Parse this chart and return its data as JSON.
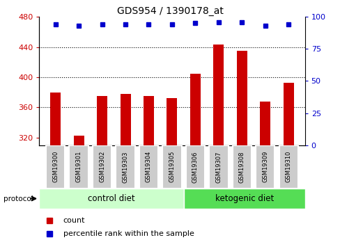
{
  "title": "GDS954 / 1390178_at",
  "samples": [
    "GSM19300",
    "GSM19301",
    "GSM19302",
    "GSM19303",
    "GSM19304",
    "GSM19305",
    "GSM19306",
    "GSM19307",
    "GSM19308",
    "GSM19309",
    "GSM19310"
  ],
  "counts": [
    380,
    323,
    375,
    378,
    375,
    372,
    405,
    443,
    435,
    368,
    393
  ],
  "percentile_ranks": [
    94,
    93,
    94,
    94,
    94,
    94,
    95,
    96,
    96,
    93,
    94
  ],
  "ylim_left": [
    310,
    480
  ],
  "ylim_right": [
    0,
    100
  ],
  "yticks_left": [
    320,
    360,
    400,
    440,
    480
  ],
  "yticks_right": [
    0,
    25,
    50,
    75,
    100
  ],
  "bar_color": "#cc0000",
  "dot_color": "#0000cc",
  "control_diet_label": "control diet",
  "ketogenic_diet_label": "ketogenic diet",
  "control_color": "#ccffcc",
  "ketogenic_color": "#55dd55",
  "protocol_label": "protocol",
  "legend_count_label": "count",
  "legend_percentile_label": "percentile rank within the sample",
  "left_tick_color": "#cc0000",
  "right_tick_color": "#0000cc",
  "grid_yticks": [
    360,
    400,
    440
  ],
  "bar_width": 0.45,
  "dot_size": 5
}
